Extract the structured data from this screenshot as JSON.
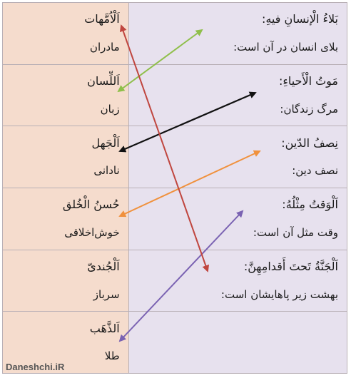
{
  "left_column": [
    {
      "word": "اَلْاُمَّهات",
      "translation": "مادران"
    },
    {
      "word": "اَللِّسان",
      "translation": "زبان"
    },
    {
      "word": "اَلْجَهل",
      "translation": "نادانی"
    },
    {
      "word": "حُسنُ الْخُلق",
      "translation": "خوش‌اخلاقی"
    },
    {
      "word": "اَلْجُندیّ",
      "translation": "سرباز"
    },
    {
      "word": "اَلذَّهَب",
      "translation": "طلا"
    }
  ],
  "right_column": [
    {
      "phrase": "بَلاءُ الْإنسانِ فیهِ:",
      "translation": "بلای انسان در آن است:"
    },
    {
      "phrase": "مَوتُ الْأَحیاءِ:",
      "translation": "مرگ زندگان:"
    },
    {
      "phrase": "نِصفُ الدّین:",
      "translation": "نصف دین:"
    },
    {
      "phrase": "اَلْوَقتُ مِثْلُهُ:",
      "translation": "وقت مثل آن است:"
    },
    {
      "phrase": "اَلْجَنَّةُ تَحتَ أَقدامِهِنَّ:",
      "translation": "بهشت زیر پاهایشان است:"
    }
  ],
  "arrow_colors": {
    "green": "#8fbf4a",
    "black": "#111111",
    "orange": "#f0913d",
    "purple": "#7a62b2",
    "red": "#c0463f"
  },
  "watermark": "Daneshchi.iR"
}
